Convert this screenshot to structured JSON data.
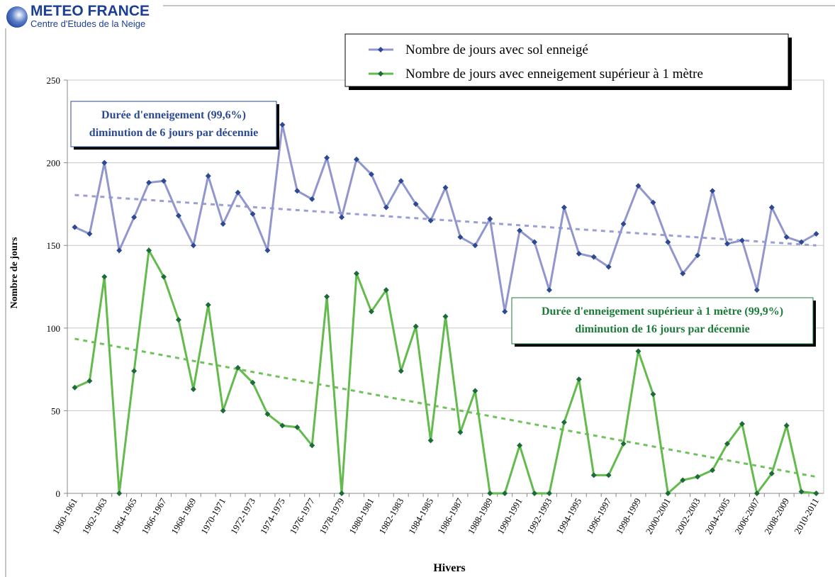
{
  "logo": {
    "name": "METEO FRANCE",
    "subtitle": "Centre d'Etudes de la Neige"
  },
  "chart_data": {
    "type": "line",
    "x_label": "Hivers",
    "y_label": "Nombre de jours",
    "categories": [
      "1960-1961",
      null,
      "1962-1963",
      null,
      "1964-1965",
      null,
      "1966-1967",
      null,
      "1968-1969",
      null,
      "1970-1971",
      null,
      "1972-1973",
      null,
      "1974-1975",
      null,
      "1976-1977",
      null,
      "1978-1979",
      null,
      "1980-1981",
      null,
      "1982-1983",
      null,
      "1984-1985",
      null,
      "1986-1987",
      null,
      "1988-1989",
      null,
      "1990-1991",
      null,
      "1992-1993",
      null,
      "1994-1995",
      null,
      "1996-1997",
      null,
      "1998-1999",
      null,
      "2000-2001",
      null,
      "2002-2003",
      null,
      "2004-2005",
      null,
      "2006-2007",
      null,
      "2008-2009",
      null,
      "2010-2011"
    ],
    "series": [
      {
        "name": "Nombre de jours avec sol enneigé",
        "color": "#9196cf",
        "marker_color": "#2c4a92",
        "values": [
          161,
          157,
          200,
          147,
          167,
          188,
          189,
          168,
          150,
          192,
          163,
          182,
          169,
          147,
          223,
          183,
          178,
          203,
          167,
          202,
          193,
          173,
          189,
          175,
          165,
          185,
          155,
          150,
          166,
          110,
          159,
          152,
          123,
          173,
          145,
          143,
          137,
          163,
          186,
          176,
          152,
          133,
          144,
          183,
          151,
          153,
          123,
          173,
          155,
          152,
          157
        ],
        "trendline": {
          "start": 180.5,
          "end": 150
        }
      },
      {
        "name": "Nombre de jours avec enneigement supérieur à 1 mètre",
        "color": "#62bb4c",
        "marker_color": "#1d6b3a",
        "values": [
          64,
          68,
          131,
          0,
          74,
          147,
          131,
          105,
          63,
          114,
          50,
          76,
          67,
          48,
          41,
          40,
          29,
          119,
          0,
          133,
          110,
          123,
          74,
          101,
          32,
          107,
          37,
          62,
          0,
          0,
          29,
          0,
          0,
          43,
          69,
          11,
          11,
          30,
          86,
          60,
          0,
          8,
          10,
          14,
          30,
          42,
          0,
          12,
          41,
          1,
          0
        ],
        "trendline": {
          "start": 93.5,
          "end": 10
        }
      }
    ],
    "annotations": [
      {
        "lines": [
          "Durée d'enneigement (99,6%)",
          "diminution de 6 jours par décennie"
        ],
        "color": "#2c4a92"
      },
      {
        "lines": [
          "Durée d'enneigement supérieur à 1 mètre (99,9%)",
          "diminution de 16 jours par décennie"
        ],
        "color": "#1d7a3a"
      }
    ],
    "ylim": [
      0,
      250
    ],
    "yticks": [
      0,
      50,
      100,
      150,
      200,
      250
    ],
    "grid": true,
    "legend": "top-right"
  }
}
